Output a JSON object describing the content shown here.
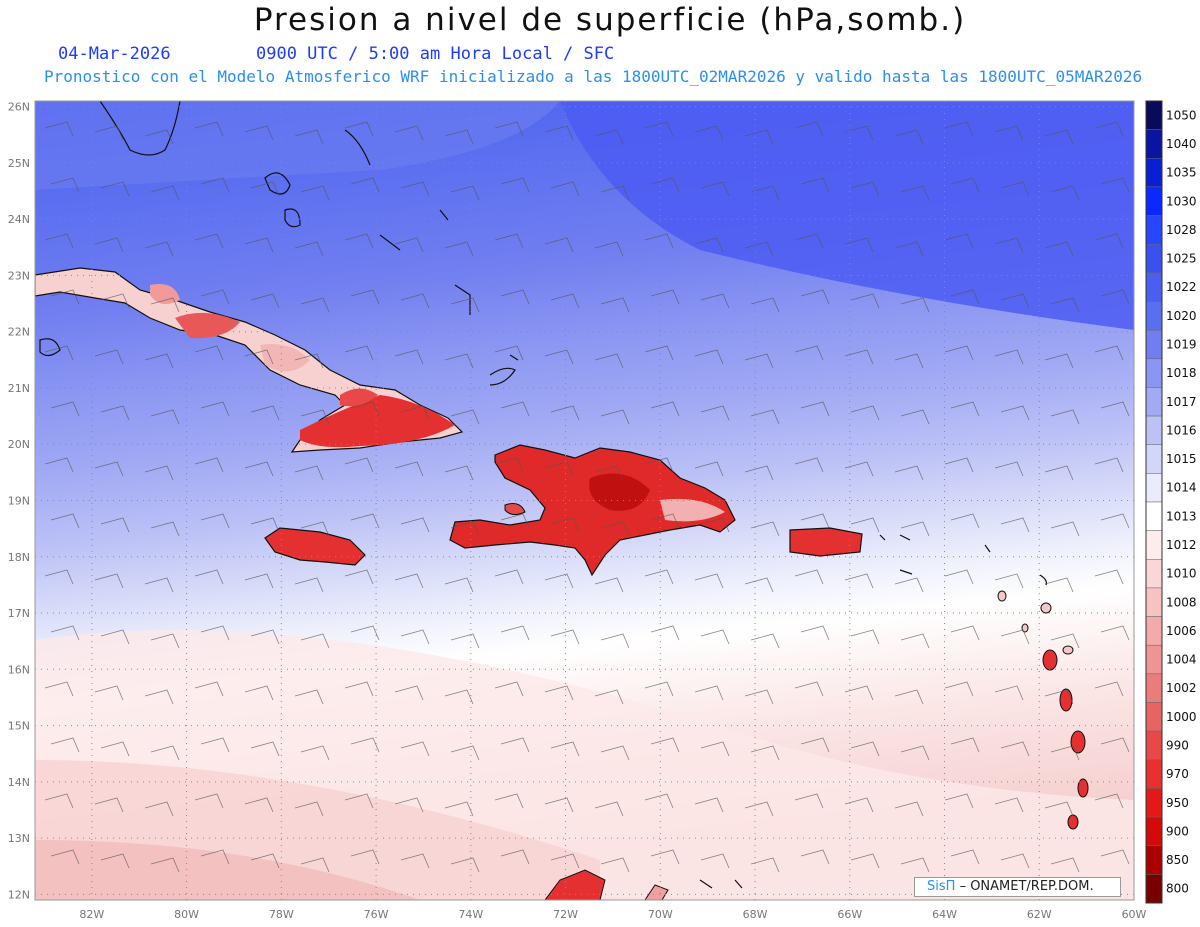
{
  "header": {
    "title": "Presion a nivel de superficie (hPa,somb.)",
    "date": "04-Mar-2026",
    "time_info": "0900 UTC / 5:00 am Hora Local / SFC",
    "forecast_info": "Pronostico con el Modelo Atmosferico WRF inicializado a las 1800UTC_02MAR2026 y valido hasta las  1800UTC_05MAR2026"
  },
  "map": {
    "lon_range": [
      -83.2,
      -60
    ],
    "lat_range": [
      11.9,
      26.1
    ],
    "lon_labels": [
      "82W",
      "80W",
      "78W",
      "76W",
      "74W",
      "72W",
      "70W",
      "68W",
      "66W",
      "64W",
      "62W",
      "60W"
    ],
    "lat_labels": [
      "12N",
      "13N",
      "14N",
      "15N",
      "16N",
      "17N",
      "18N",
      "19N",
      "20N",
      "21N",
      "22N",
      "23N",
      "24N",
      "25N",
      "26N"
    ],
    "grid_lines": "dotted"
  },
  "colorbar": {
    "levels": [
      "1050",
      "1040",
      "1035",
      "1030",
      "1028",
      "1025",
      "1022",
      "1020",
      "1019",
      "1018",
      "1017",
      "1016",
      "1015",
      "1014",
      "1013",
      "1012",
      "1010",
      "1008",
      "1006",
      "1004",
      "1002",
      "1000",
      "990",
      "970",
      "950",
      "900",
      "850",
      "800"
    ],
    "colors": [
      "#0a0a5a",
      "#0a14a0",
      "#0a1ed2",
      "#0a28ff",
      "#2846ff",
      "#3c50f0",
      "#4b5ef0",
      "#5a6ef0",
      "#707ef0",
      "#8a96f2",
      "#a2aaf4",
      "#bcc2f6",
      "#d2d6f8",
      "#eaecfc",
      "#ffffff",
      "#fdecec",
      "#fad6d6",
      "#f6c2c2",
      "#f2aaaa",
      "#ee9494",
      "#ea7c7c",
      "#e86464",
      "#e84848",
      "#e83030",
      "#e41818",
      "#d20a0a",
      "#aa0000",
      "#780000"
    ]
  },
  "credit": {
    "brand": "SisΠ",
    "org": "– ONAMET/REP.DOM."
  }
}
